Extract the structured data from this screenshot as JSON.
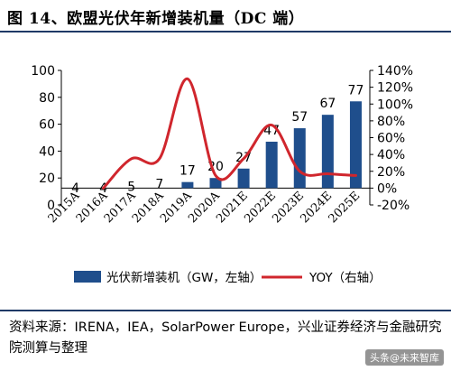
{
  "header": {
    "title": "图 14、欧盟光伏年新增装机量（DC 端）"
  },
  "chart_data": {
    "type": "bar",
    "categories": [
      "2015A",
      "2016A",
      "2017A",
      "2018A",
      "2019A",
      "2020A",
      "2021E",
      "2022E",
      "2023E",
      "2024E",
      "2025E"
    ],
    "series": [
      {
        "name": "光伏新增装机（GW，左轴）",
        "type": "bar",
        "axis": "left",
        "values": [
          4,
          4,
          5,
          7,
          17,
          20,
          27,
          47,
          57,
          67,
          77
        ],
        "color": "#1f4e8c"
      },
      {
        "name": "YOY（右轴）",
        "type": "line",
        "axis": "right",
        "values": [
          0.0,
          0.0,
          0.35,
          0.35,
          1.3,
          0.15,
          0.35,
          0.75,
          0.2,
          0.17,
          0.15
        ],
        "color": "#d0262d"
      }
    ],
    "left_axis": {
      "min": 0,
      "max": 100,
      "ticks": [
        0,
        20,
        40,
        60,
        80,
        100
      ]
    },
    "right_axis": {
      "min": -0.2,
      "max": 1.4,
      "ticks": [
        "-20%",
        "0%",
        "20%",
        "40%",
        "60%",
        "80%",
        "100%",
        "120%",
        "140%"
      ]
    },
    "legend_position": "bottom",
    "grid": false
  },
  "source": {
    "text": "资料来源：IRENA，IEA，SolarPower Europe，兴业证券经济与金融研究院测算与整理"
  },
  "watermark": {
    "text": "头条@未来智库"
  }
}
